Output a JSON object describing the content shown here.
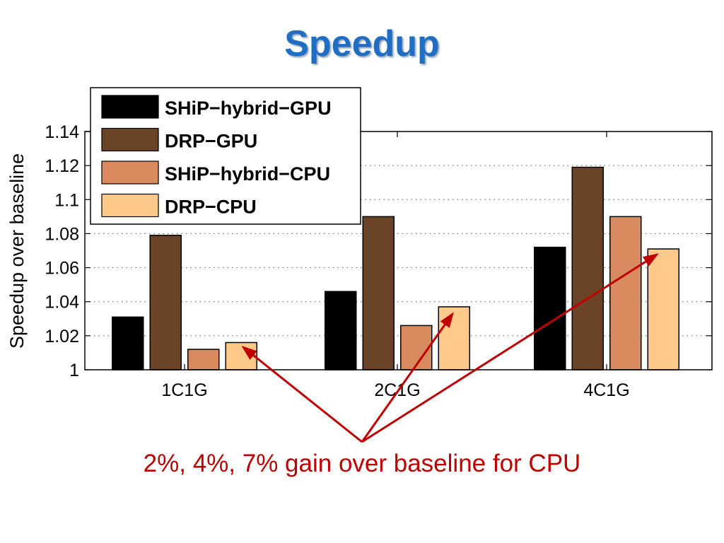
{
  "slide": {
    "title": "Speedup",
    "annotation": "2%, 4%, 7% gain over baseline for CPU"
  },
  "colors": {
    "title": "#1f6ec4",
    "annotation": "#c00000",
    "arrow": "#c00000"
  },
  "chart_data": {
    "type": "bar",
    "categories": [
      "1C1G",
      "2C1G",
      "4C1G"
    ],
    "ylabel": "Speedup over baseline",
    "ylim": [
      1,
      1.14
    ],
    "yticks": [
      1,
      1.02,
      1.04,
      1.06,
      1.08,
      1.1,
      1.12,
      1.14
    ],
    "ytick_labels": [
      "1",
      "1.02",
      "1.04",
      "1.06",
      "1.08",
      "1.1",
      "1.12",
      "1.14"
    ],
    "grid": "horizontal dotted",
    "legend_position": "top-left",
    "series": [
      {
        "name": "SHiP−hybrid−GPU",
        "color": "#000000",
        "values": [
          1.031,
          1.046,
          1.072
        ]
      },
      {
        "name": "DRP−GPU",
        "color": "#6b4428",
        "values": [
          1.079,
          1.09,
          1.119
        ]
      },
      {
        "name": "SHiP−hybrid−CPU",
        "color": "#d98a5e",
        "values": [
          1.012,
          1.026,
          1.09
        ]
      },
      {
        "name": "DRP−CPU",
        "color": "#ffc98a",
        "values": [
          1.016,
          1.037,
          1.071
        ]
      }
    ]
  }
}
